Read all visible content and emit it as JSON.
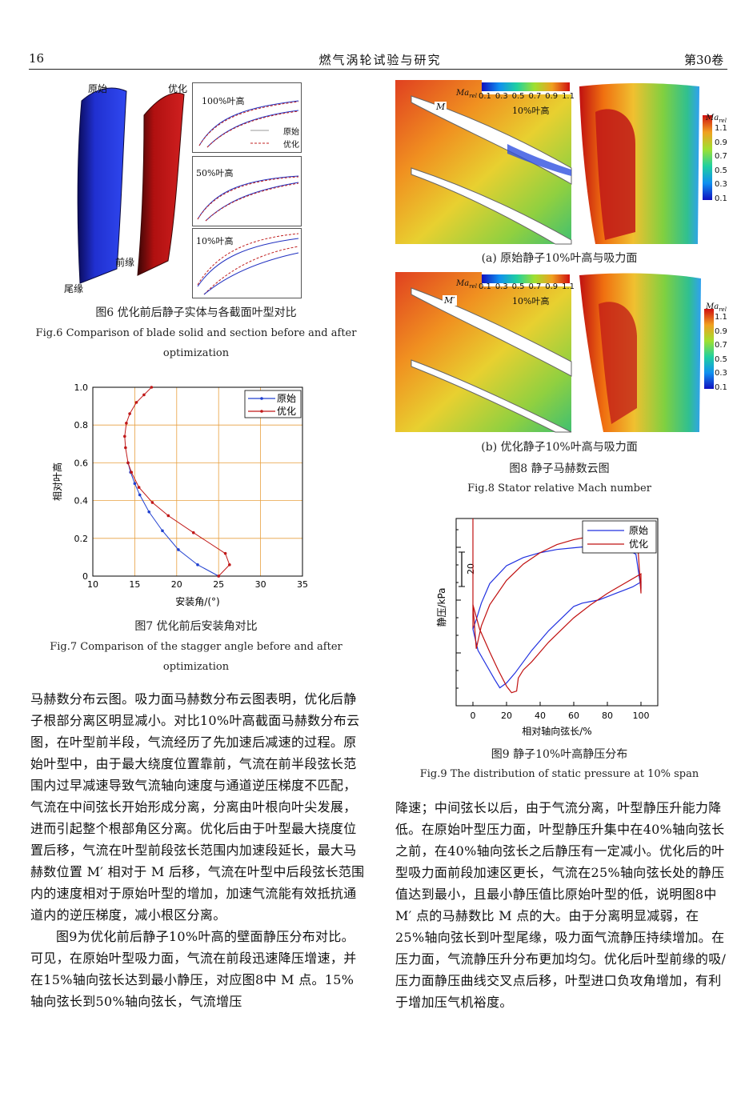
{
  "header": {
    "page_number": "16",
    "journal": "燃气涡轮试验与研究",
    "volume": "第30卷"
  },
  "fig6": {
    "label_original": "原始",
    "label_optimized": "优化",
    "label_leading_edge": "前缘",
    "label_trailing_edge": "尾缘",
    "panel_100": "100%叶高",
    "panel_50": "50%叶高",
    "panel_10": "10%叶高",
    "legend_original": "原始",
    "legend_optimized": "优化",
    "caption_cn": "图6  优化前后静子实体与各截面叶型对比",
    "caption_en_line1": "Fig.6  Comparison of blade solid and section before and after",
    "caption_en_line2": "optimization"
  },
  "fig7": {
    "caption_cn": "图7  优化前后安装角对比",
    "caption_en_line1": "Fig.7  Comparison of the stagger angle before and after",
    "caption_en_line2": "optimization"
  },
  "fig8": {
    "colorbar_title": "Ma",
    "colorbar_sub": "rel",
    "colorbar_ticks": [
      "0.1",
      "0.3",
      "0.5",
      "0.7",
      "0.9",
      "1.1"
    ],
    "span_label": "10%叶高",
    "marker_a": "M",
    "marker_b": "M′",
    "sub_a": "(a)  原始静子10%叶高与吸力面",
    "sub_b": "(b)  优化静子10%叶高与吸力面",
    "caption_cn": "图8  静子马赫数云图",
    "caption_en": "Fig.8  Stator relative Mach number"
  },
  "fig9": {
    "scale_label": "20",
    "caption_cn": "图9  静子10%叶高静压分布",
    "caption_en": "Fig.9  The distribution of static pressure at 10% span"
  },
  "body_left": [
    "马赫数分布云图。吸力面马赫数分布云图表明，优化后静子根部分离区明显减小。对比10%叶高截面马赫数分布云图，在叶型前半段，气流经历了先加速后减速的过程。原始叶型中，由于最大绕度位置靠前，气流在前半段弦长范围内过早减速导致气流轴向速度与通道逆压梯度不匹配，气流在中间弦长开始形成分离，分离由叶根向叶尖发展，进而引起整个根部角区分离。优化后由于叶型最大挠度位置后移，气流在叶型前段弦长范围内加速段延长，最大马赫数位置 M′ 相对于 M 后移，气流在叶型中后段弦长范围内的速度相对于原始叶型的增加，加速气流能有效抵抗通道内的逆压梯度，减小根区分离。",
    "图9为优化前后静子10%叶高的壁面静压分布对比。可见，在原始叶型吸力面，气流在前段迅速降压增速，并在15%轴向弦长达到最小静压，对应图8中 M 点。15%轴向弦长到50%轴向弦长，气流增压"
  ],
  "body_right": [
    "降速；中间弦长以后，由于气流分离，叶型静压升能力降低。在原始叶型压力面，叶型静压升集中在40%轴向弦长之前，在40%轴向弦长之后静压有一定减小。优化后的叶型吸力面前段加速区更长，气流在25%轴向弦长处的静压值达到最小，且最小静压值比原始叶型的低，说明图8中 M′ 点的马赫数比 M 点的大。由于分离明显减弱，在25%轴向弦长到叶型尾缘，吸力面气流静压持续增加。在压力面，气流静压升分布更加均匀。优化后叶型前缘的吸/压力面静压曲线交叉点后移，叶型进口负攻角增加，有利于增加压气机裕度。"
  ],
  "chart_data": [
    {
      "type": "line",
      "title": "",
      "xlabel": "安装角/(°)",
      "ylabel": "相对叶高",
      "xlim": [
        10,
        35
      ],
      "ylim": [
        0,
        1.0
      ],
      "xticks": [
        10,
        15,
        20,
        25,
        30,
        35
      ],
      "yticks": [
        0,
        0.2,
        0.4,
        0.6,
        0.8,
        1.0
      ],
      "grid": true,
      "legend": "top-right",
      "series": [
        {
          "name": "原始",
          "color": "#2040d0",
          "x": [
            25.0,
            22.5,
            20.2,
            18.3,
            16.7,
            15.6,
            15.0,
            14.5,
            14.2
          ],
          "y": [
            0.0,
            0.06,
            0.14,
            0.24,
            0.34,
            0.43,
            0.49,
            0.55,
            0.6
          ]
        },
        {
          "name": "优化",
          "color": "#c01818",
          "x": [
            25.0,
            26.3,
            25.8,
            22.0,
            19.0,
            17.1,
            15.5,
            14.6,
            14.2,
            13.9,
            13.8,
            14.0,
            14.4,
            15.2,
            16.1,
            17.0
          ],
          "y": [
            0.0,
            0.06,
            0.12,
            0.23,
            0.32,
            0.39,
            0.47,
            0.55,
            0.6,
            0.68,
            0.74,
            0.81,
            0.86,
            0.92,
            0.96,
            1.0
          ]
        }
      ]
    },
    {
      "type": "line",
      "title": "",
      "xlabel": "相对轴向弦长/%",
      "ylabel": "静压/kPa",
      "xlim": [
        -10,
        110
      ],
      "xticks": [
        0,
        20,
        40,
        60,
        80,
        100
      ],
      "legend": "top-right",
      "series": [
        {
          "name": "原始",
          "color": "#2030e0",
          "x": [
            0,
            3,
            8,
            13,
            16,
            20,
            25,
            30,
            35,
            40,
            45,
            50,
            55,
            60,
            65,
            70,
            75,
            80,
            85,
            90,
            95,
            100,
            100,
            97,
            90,
            80,
            70,
            60,
            50,
            40,
            30,
            20,
            10,
            5,
            2,
            0
          ],
          "y": [
            57,
            44,
            35,
            26,
            21,
            24,
            30,
            37,
            44,
            50,
            56,
            61,
            66,
            71,
            73,
            74,
            75,
            77,
            79,
            81,
            83,
            86,
            82,
            103,
            107,
            108,
            108,
            107,
            106,
            104,
            101,
            96,
            85,
            73,
            63,
            57
          ]
        },
        {
          "name": "优化",
          "color": "#c01010",
          "x": [
            0,
            4,
            10,
            15,
            20,
            23,
            26,
            27,
            30,
            35,
            40,
            45,
            50,
            60,
            70,
            80,
            90,
            100,
            100,
            98,
            95,
            88,
            80,
            70,
            60,
            50,
            40,
            30,
            20,
            10,
            5,
            2,
            0
          ],
          "y": [
            72,
            57,
            43,
            32,
            22,
            18,
            19,
            27,
            32,
            37,
            43,
            49,
            54,
            64,
            72,
            79,
            85,
            91,
            79,
            110,
            113,
            115,
            115,
            114,
            112,
            109,
            104,
            97,
            87,
            72,
            59,
            45,
            72
          ]
        }
      ]
    }
  ]
}
